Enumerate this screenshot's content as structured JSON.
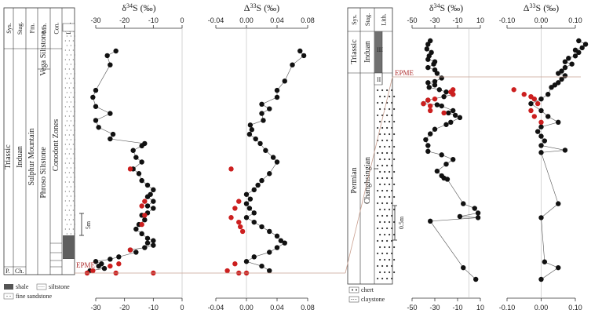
{
  "left_panel": {
    "column_headers": [
      "Sys.",
      "Stag.",
      "Fm.",
      "Mb.",
      "Con.",
      "Lith."
    ],
    "system": "Triassic",
    "system_lower": "P.",
    "stage": "Induan",
    "stage_lower": "Ch.",
    "formation": "Sulphur Mountain",
    "member_upper": "Vega Siltstone",
    "member_lower": "Phroso Siltstone",
    "conodont": "Conodont Zones",
    "scale_bar": "5m",
    "epme_label": "EPME",
    "legend": [
      {
        "key": "shale",
        "label": "shale"
      },
      {
        "key": "siltstone",
        "label": "siltstone"
      },
      {
        "key": "fine_sandstone",
        "label": "fine sandstone"
      }
    ]
  },
  "right_panel": {
    "column_headers": [
      "Sys.",
      "Stag.",
      "Lith."
    ],
    "system_upper": "Triassic",
    "system_lower": "Permian",
    "stage_upper": "Induan",
    "stage_lower": "Changhsingian",
    "unit_upper": "III",
    "unit_mid": "II",
    "unit_lower": "I",
    "scale_bar": "0.5m",
    "epme_label": "EPME",
    "legend": [
      {
        "key": "chert",
        "label": "chert"
      },
      {
        "key": "claystone",
        "label": "claystone"
      }
    ]
  },
  "colors": {
    "normal": "#111111",
    "highlight": "#cc1f1f",
    "epme_line": "#c9a090"
  },
  "chart_data": [
    {
      "type": "scatter",
      "id": "left_d34S",
      "title": "δ34S (‰)",
      "xlim": [
        -30,
        0
      ],
      "xticks": [
        -30,
        -20,
        -10,
        0
      ],
      "x_label_fmt": "int",
      "series": [
        {
          "style": "black",
          "points": [
            [
              -23,
              10
            ],
            [
              -26,
              12
            ],
            [
              -25,
              16
            ],
            [
              -30,
              27
            ],
            [
              -31,
              30
            ],
            [
              -30,
              34
            ],
            [
              -25,
              37
            ],
            [
              -30,
              40
            ],
            [
              -29,
              43
            ],
            [
              -24,
              46
            ],
            [
              -25,
              48
            ],
            [
              -13,
              50
            ],
            [
              -14,
              51
            ],
            [
              -17,
              53
            ],
            [
              -16,
              56
            ],
            [
              -14,
              58
            ],
            [
              -17,
              61
            ],
            [
              -15,
              63
            ],
            [
              -14,
              66
            ],
            [
              -12,
              68
            ],
            [
              -10,
              70
            ],
            [
              -11,
              72
            ],
            [
              -12,
              73
            ],
            [
              -10,
              75
            ],
            [
              -12,
              77
            ],
            [
              -10,
              78
            ],
            [
              -12,
              80
            ],
            [
              -14,
              81
            ],
            [
              -13,
              83
            ],
            [
              -15,
              85
            ],
            [
              -16,
              87
            ],
            [
              -14,
              89
            ],
            [
              -12,
              91
            ],
            [
              -10,
              92
            ],
            [
              -12,
              93
            ],
            [
              -10,
              94
            ],
            [
              -13,
              95
            ],
            [
              -18,
              96
            ],
            [
              -16,
              97
            ],
            [
              -22,
              99
            ],
            [
              -25,
              100
            ],
            [
              -30,
              101
            ],
            [
              -28,
              102
            ],
            [
              -29,
              103
            ],
            [
              -27,
              104
            ],
            [
              -32,
              105
            ]
          ]
        },
        {
          "style": "red",
          "points": [
            [
              -18,
              61
            ],
            [
              -13,
              75
            ],
            [
              -14,
              77
            ],
            [
              -13,
              81
            ],
            [
              -14,
              85
            ],
            [
              -18,
              96
            ],
            [
              -22,
              102
            ],
            [
              -25,
              103
            ],
            [
              -31,
              105
            ],
            [
              -33,
              106
            ],
            [
              -23,
              106
            ],
            [
              -10,
              106
            ]
          ]
        }
      ]
    },
    {
      "type": "scatter",
      "id": "left_D33S",
      "title": "Δ33S (‰)",
      "xlim": [
        -0.04,
        0.08
      ],
      "xticks": [
        -0.04,
        0.0,
        0.04,
        0.08
      ],
      "x_label_fmt": "2f",
      "series": [
        {
          "style": "black",
          "points": [
            [
              0.07,
              10
            ],
            [
              0.075,
              12
            ],
            [
              0.06,
              16
            ],
            [
              0.05,
              23
            ],
            [
              0.04,
              27
            ],
            [
              0.04,
              30
            ],
            [
              0.02,
              33
            ],
            [
              0.03,
              35
            ],
            [
              0.02,
              37
            ],
            [
              0.022,
              40
            ],
            [
              0.005,
              42
            ],
            [
              0.007,
              44
            ],
            [
              0.004,
              46
            ],
            [
              0.012,
              48
            ],
            [
              0.018,
              50
            ],
            [
              0.025,
              53
            ],
            [
              0.035,
              56
            ],
            [
              0.04,
              58
            ],
            [
              0.03,
              63
            ],
            [
              0.02,
              66
            ],
            [
              0.015,
              68
            ],
            [
              0.01,
              70
            ],
            [
              0.0,
              72
            ],
            [
              0.005,
              74
            ],
            [
              0.0,
              76
            ],
            [
              0.004,
              78
            ],
            [
              0.01,
              80
            ],
            [
              0.0,
              82
            ],
            [
              0.01,
              84
            ],
            [
              0.02,
              86
            ],
            [
              0.03,
              88
            ],
            [
              0.04,
              90
            ],
            [
              0.045,
              92
            ],
            [
              0.05,
              93
            ],
            [
              0.04,
              95
            ],
            [
              0.03,
              97
            ],
            [
              0.01,
              99
            ],
            [
              0.0,
              101
            ],
            [
              0.02,
              103
            ],
            [
              0.03,
              105
            ]
          ]
        },
        {
          "style": "red",
          "points": [
            [
              -0.02,
              61
            ],
            [
              -0.01,
              75
            ],
            [
              -0.015,
              78
            ],
            [
              -0.02,
              82
            ],
            [
              -0.01,
              84
            ],
            [
              -0.008,
              86
            ],
            [
              -0.005,
              88
            ],
            [
              -0.015,
              102
            ],
            [
              -0.025,
              105
            ],
            [
              -0.01,
              106
            ],
            [
              0.0,
              106
            ]
          ]
        }
      ]
    },
    {
      "type": "scatter",
      "id": "right_d34S",
      "title": "δ34S (‰)",
      "xlim": [
        -50,
        10
      ],
      "xticks": [
        -50,
        -30,
        -10,
        10
      ],
      "x_label_fmt": "int",
      "series": [
        {
          "style": "black",
          "points": [
            [
              -34,
              10
            ],
            [
              -36,
              13
            ],
            [
              -37,
              17
            ],
            [
              -33,
              20
            ],
            [
              -35,
              23
            ],
            [
              -36,
              26
            ],
            [
              -30,
              28
            ],
            [
              -31,
              30
            ],
            [
              -36,
              33
            ],
            [
              -30,
              35
            ],
            [
              -28,
              38
            ],
            [
              -24,
              42
            ],
            [
              -30,
              45
            ],
            [
              -36,
              46
            ],
            [
              -30,
              48
            ],
            [
              -35,
              50
            ],
            [
              -26,
              52
            ],
            [
              -20,
              54
            ],
            [
              -14,
              56
            ],
            [
              -22,
              58
            ],
            [
              -36,
              61
            ],
            [
              -40,
              64
            ],
            [
              -28,
              65
            ],
            [
              -24,
              66
            ],
            [
              -14,
              70
            ],
            [
              -18,
              72
            ],
            [
              -12,
              74
            ],
            [
              -8,
              76
            ],
            [
              -16,
              80
            ],
            [
              -20,
              82
            ],
            [
              -30,
              86
            ],
            [
              -34,
              90
            ],
            [
              -38,
              95
            ],
            [
              -36,
              100
            ],
            [
              -36,
              105
            ],
            [
              -24,
              108
            ],
            [
              -14,
              112
            ],
            [
              -20,
              116
            ],
            [
              -28,
              122
            ],
            [
              -24,
              126
            ],
            [
              -22,
              128
            ],
            [
              -19,
              129
            ],
            [
              -5,
              150
            ],
            [
              5,
              154
            ],
            [
              8,
              158
            ],
            [
              -8,
              161
            ],
            [
              8,
              162
            ],
            [
              -34,
              165
            ],
            [
              -5,
              205
            ],
            [
              6,
              215
            ]
          ]
        },
        {
          "style": "red",
          "points": [
            [
              -36,
              61
            ],
            [
              -40,
              64
            ],
            [
              -34,
              70
            ],
            [
              -14,
              52
            ],
            [
              -16,
              54
            ],
            [
              -14,
              56
            ],
            [
              -30,
              60
            ],
            [
              -34,
              66
            ],
            [
              -22,
              72
            ]
          ]
        }
      ]
    },
    {
      "type": "scatter",
      "id": "right_D33S",
      "title": "Δ33S (‰)",
      "xlim": [
        -0.1,
        0.1
      ],
      "xticks": [
        -0.1,
        0.0,
        0.1
      ],
      "x_label_fmt": "2f",
      "series": [
        {
          "style": "black",
          "points": [
            [
              0.11,
              10
            ],
            [
              0.13,
              13
            ],
            [
              0.12,
              16
            ],
            [
              0.1,
              18
            ],
            [
              0.11,
              20
            ],
            [
              0.1,
              23
            ],
            [
              0.08,
              25
            ],
            [
              0.07,
              28
            ],
            [
              0.09,
              30
            ],
            [
              0.07,
              33
            ],
            [
              0.06,
              36
            ],
            [
              0.05,
              38
            ],
            [
              0.07,
              40
            ],
            [
              0.06,
              43
            ],
            [
              0.05,
              46
            ],
            [
              0.04,
              48
            ],
            [
              0.03,
              50
            ],
            [
              0.02,
              56
            ],
            [
              0.0,
              60
            ],
            [
              -0.03,
              64
            ],
            [
              0.0,
              70
            ],
            [
              0.02,
              75
            ],
            [
              0.05,
              80
            ],
            [
              0.0,
              84
            ],
            [
              -0.01,
              88
            ],
            [
              0.0,
              92
            ],
            [
              0.01,
              96
            ],
            [
              0.0,
              100
            ],
            [
              0.07,
              104
            ],
            [
              0.0,
              106
            ],
            [
              0.05,
              150
            ],
            [
              0.0,
              162
            ],
            [
              0.01,
              200
            ],
            [
              0.05,
              205
            ],
            [
              0.0,
              215
            ]
          ]
        },
        {
          "style": "red",
          "points": [
            [
              -0.08,
              52
            ],
            [
              -0.05,
              56
            ],
            [
              -0.03,
              58
            ],
            [
              -0.02,
              60
            ],
            [
              -0.01,
              64
            ],
            [
              -0.03,
              70
            ],
            [
              -0.02,
              75
            ],
            [
              0.0,
              80
            ]
          ]
        }
      ]
    }
  ]
}
